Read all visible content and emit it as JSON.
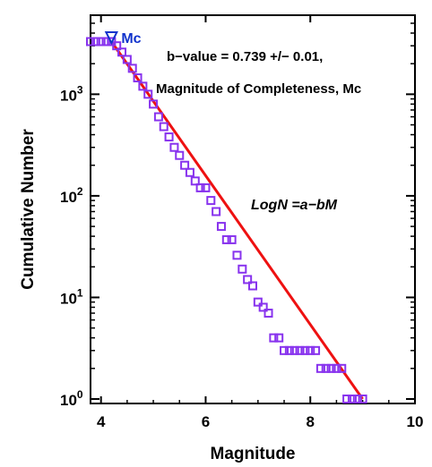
{
  "chart_data": {
    "type": "scatter",
    "x_label": "Magnitude",
    "y_label": "Cumulative Number",
    "x_range": [
      3.8,
      10
    ],
    "y_range": [
      1,
      6000
    ],
    "y_scale": "log",
    "x_ticks": [
      {
        "value": 4,
        "label": "4"
      },
      {
        "value": 6,
        "label": "6"
      },
      {
        "value": 8,
        "label": "8"
      },
      {
        "value": 10,
        "label": "10"
      }
    ],
    "y_ticks": [
      {
        "value": 1,
        "base": "10",
        "exp": "0"
      },
      {
        "value": 10,
        "base": "10",
        "exp": "1"
      },
      {
        "value": 100,
        "base": "10",
        "exp": "2"
      },
      {
        "value": 1000,
        "base": "10",
        "exp": "3"
      }
    ],
    "points": {
      "x": [
        3.8,
        3.9,
        4.0,
        4.1,
        4.2,
        4.3,
        4.4,
        4.5,
        4.6,
        4.7,
        4.8,
        4.9,
        5.0,
        5.1,
        5.2,
        5.3,
        5.4,
        5.5,
        5.6,
        5.7,
        5.8,
        5.9,
        6.0,
        6.1,
        6.2,
        6.3,
        6.4,
        6.5,
        6.6,
        6.7,
        6.8,
        6.9,
        7.0,
        7.1,
        7.2,
        7.3,
        7.4,
        7.5,
        7.6,
        7.7,
        7.8,
        7.9,
        8.0,
        8.1,
        8.2,
        8.3,
        8.4,
        8.5,
        8.6,
        8.7,
        8.8,
        8.9,
        9.0
      ],
      "y": [
        3300,
        3300,
        3300,
        3300,
        3300,
        3000,
        2600,
        2200,
        1800,
        1450,
        1200,
        1000,
        800,
        600,
        480,
        380,
        300,
        250,
        200,
        170,
        140,
        120,
        120,
        90,
        70,
        50,
        37,
        37,
        26,
        19,
        15,
        13,
        9,
        8,
        7,
        4,
        4,
        3,
        3,
        3,
        3,
        3,
        3,
        3,
        2,
        2,
        2,
        2,
        2,
        1,
        1,
        1,
        1
      ],
      "marker": "open-square",
      "color": "#8833ee"
    },
    "fit_line": {
      "equation": "LogN =a−bM",
      "points": [
        [
          4.2,
          3300
        ],
        [
          9.0,
          1
        ]
      ],
      "color": "#ee1111"
    },
    "mc": {
      "label": "Mc",
      "value": 4.2,
      "marker": "inverted-triangle",
      "color": "#1133cc"
    },
    "annotations": [
      "b−value = 0.739 +/− 0.01,",
      "Magnitude of Completeness, Mc"
    ],
    "grid": false,
    "legend": "none"
  }
}
